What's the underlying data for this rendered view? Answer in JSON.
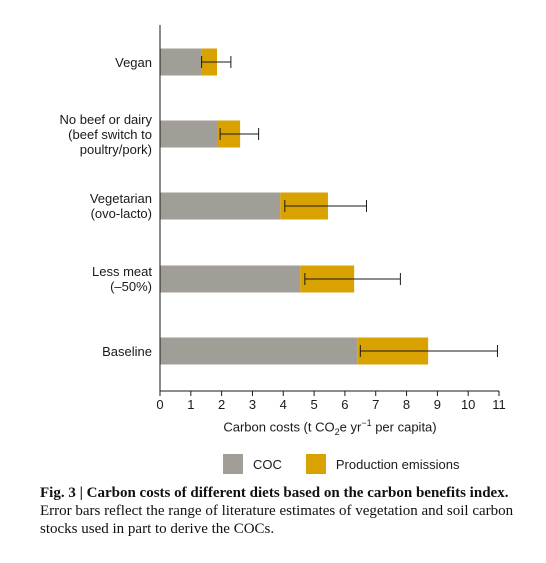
{
  "chart_data": {
    "type": "bar",
    "orientation": "horizontal",
    "stacked": true,
    "categories": [
      [
        "Vegan"
      ],
      [
        "No beef or dairy",
        "(beef switch to",
        "poultry/pork)"
      ],
      [
        "Vegetarian",
        "(ovo-lacto)"
      ],
      [
        "Less meat",
        "(–50%)"
      ],
      [
        "Baseline"
      ]
    ],
    "series": [
      {
        "name": "COC",
        "values": [
          1.35,
          1.85,
          3.9,
          4.55,
          6.4
        ],
        "color": "#a09e96"
      },
      {
        "name": "Production emissions",
        "values": [
          0.5,
          0.75,
          1.55,
          1.75,
          2.3
        ],
        "color": "#d9a200"
      }
    ],
    "error_bars": [
      {
        "low": 1.35,
        "high": 2.3
      },
      {
        "low": 1.95,
        "high": 3.2
      },
      {
        "low": 4.05,
        "high": 6.7
      },
      {
        "low": 4.7,
        "high": 7.8
      },
      {
        "low": 6.5,
        "high": 10.95
      }
    ],
    "xlim": [
      0,
      11
    ],
    "xticks": [
      "0",
      "1",
      "2",
      "3",
      "4",
      "5",
      "6",
      "7",
      "8",
      "9",
      "10",
      "11"
    ],
    "xlabel": {
      "pre": "Carbon costs (t CO",
      "sub": "2",
      "mid": "e yr",
      "sup": "−1",
      "post": " per capita)"
    },
    "legend_placement": "bottom"
  },
  "caption": {
    "bold": "Fig. 3 | Carbon costs of different diets based on the carbon benefits index.",
    "rest": " Error bars reflect the range of literature estimates of vegetation and soil carbon stocks used in part to derive the COCs."
  }
}
